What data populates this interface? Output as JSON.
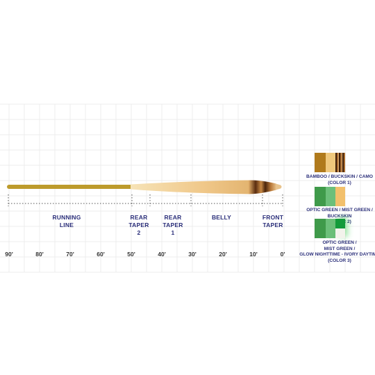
{
  "sections": {
    "running_line": [
      "RUNNING",
      "LINE"
    ],
    "rear_taper_2": [
      "REAR",
      "TAPER",
      "2"
    ],
    "rear_taper_1": [
      "REAR",
      "TAPER",
      "1"
    ],
    "belly": [
      "BELLY"
    ],
    "front_taper": [
      "FRONT",
      "TAPER"
    ]
  },
  "axis": {
    "ticks": [
      "90'",
      "80'",
      "70'",
      "60'",
      "50'",
      "40'",
      "30'",
      "20'",
      "10'",
      "0'"
    ]
  },
  "legend": [
    {
      "lines": [
        "BAMBOO / BUCKSKIN / CAMO",
        "(COLOR 1)"
      ],
      "colors": [
        "#b07a1c",
        "#efc87d",
        "#6a3a16"
      ]
    },
    {
      "lines": [
        "OPTIC GREEN / MIST GREEN / BUCKSKIN",
        "(COLOR 2)"
      ],
      "colors": [
        "#3f9a4a",
        "#6cbf7a",
        "#f2c06c"
      ]
    },
    {
      "lines": [
        "OPTIC GREEN /",
        "MIST GREEN /",
        "GLOW NIGHTTIME - IVORY DAYTIME",
        "(COLOR 3)"
      ],
      "colors": [
        "#3f9a4a",
        "#6cbf7a",
        "#129b3a"
      ]
    }
  ],
  "colors": {
    "running_line": "#bd9b2c",
    "head": "#f3c98a",
    "label_text": "#2b2f7a"
  }
}
